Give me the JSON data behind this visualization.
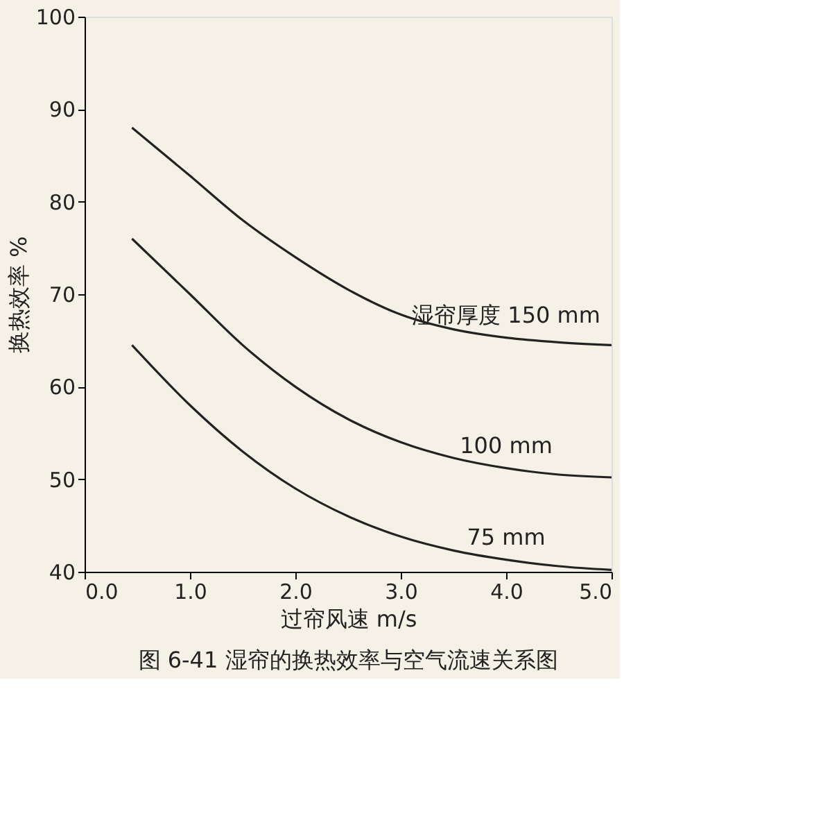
{
  "chart_data": {
    "type": "line",
    "xlabel": "过帘风速 m/s",
    "ylabel": "换热效率 %",
    "xlim": [
      0,
      5
    ],
    "xticks": [
      {
        "value": 0,
        "label": "0.0"
      },
      {
        "value": 1,
        "label": "1.0"
      },
      {
        "value": 2,
        "label": "2.0"
      },
      {
        "value": 3,
        "label": "3.0"
      },
      {
        "value": 4,
        "label": "4.0"
      },
      {
        "value": 5,
        "label": "5.0"
      }
    ],
    "ylim": [
      40,
      100
    ],
    "yticks": [
      40,
      50,
      60,
      70,
      80,
      90,
      100
    ],
    "grid": false,
    "legend": false,
    "marker": "none",
    "line_style": "solid",
    "x": [
      0.45,
      1.0,
      1.5,
      2.0,
      2.5,
      3.0,
      3.5,
      4.0,
      4.5,
      5.0
    ],
    "series": [
      {
        "name": "湿帘厚度 150 mm",
        "color": "#222222",
        "values": [
          88,
          82.8,
          78,
          74,
          70.5,
          67.8,
          66.2,
          65.3,
          64.8,
          64.5
        ]
      },
      {
        "name": "100 mm",
        "color": "#222222",
        "values": [
          76,
          70,
          64.5,
          60,
          56.5,
          54,
          52.3,
          51.2,
          50.5,
          50.2
        ]
      },
      {
        "name": "75 mm",
        "color": "#222222",
        "values": [
          64.5,
          58,
          53,
          49,
          46,
          43.8,
          42.3,
          41.3,
          40.6,
          40.2
        ]
      }
    ],
    "annotations": [
      "图 6-41 湿帘的换热效率与空气流速关系图"
    ]
  }
}
